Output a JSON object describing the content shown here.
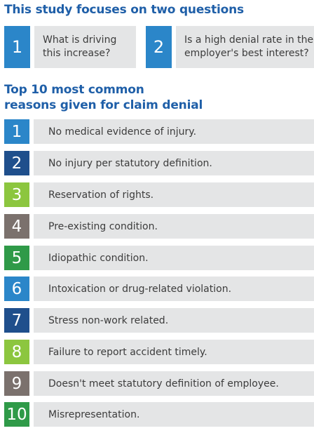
{
  "study": {
    "heading": "This study focuses on two questions",
    "questions": [
      {
        "number": "1",
        "text": "What is driving\nthis increase?",
        "color": "#2b86c9"
      },
      {
        "number": "2",
        "text": "Is a high denial rate in the\nemployer's best interest?",
        "color": "#2b86c9"
      }
    ]
  },
  "reasons": {
    "heading": "Top 10 most common\nreasons given for claim denial",
    "items": [
      {
        "number": "1",
        "label": "No medical evidence of injury.",
        "color": "#2b86c9"
      },
      {
        "number": "2",
        "label": "No injury per statutory definition.",
        "color": "#1f4f8c"
      },
      {
        "number": "3",
        "label": "Reservation of rights.",
        "color": "#8cc63f"
      },
      {
        "number": "4",
        "label": "Pre-existing condition.",
        "color": "#7b716d"
      },
      {
        "number": "5",
        "label": "Idiopathic condition.",
        "color": "#2f9a48"
      },
      {
        "number": "6",
        "label": "Intoxication or drug-related violation.",
        "color": "#2b86c9"
      },
      {
        "number": "7",
        "label": "Stress non-work related.",
        "color": "#1f4f8c"
      },
      {
        "number": "8",
        "label": "Failure to report accident timely.",
        "color": "#8cc63f"
      },
      {
        "number": "9",
        "label": "Doesn't meet statutory definition of employee.",
        "color": "#7b716d"
      },
      {
        "number": "10",
        "label": "Misrepresentation.",
        "color": "#2f9a48"
      }
    ]
  }
}
